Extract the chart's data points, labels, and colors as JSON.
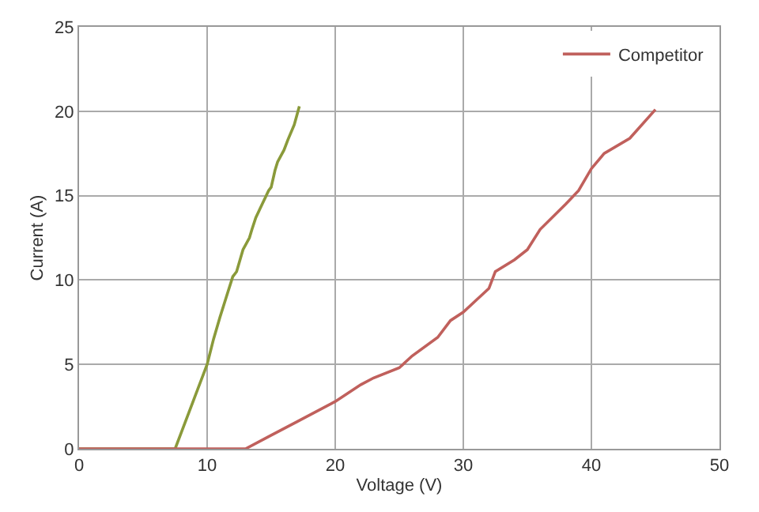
{
  "chart_data": {
    "type": "line",
    "xlabel": "Voltage (V)",
    "ylabel": "Current (A)",
    "xlim": [
      0,
      50
    ],
    "xticks": [
      0,
      10,
      20,
      30,
      40,
      50
    ],
    "ylim": [
      0,
      25
    ],
    "yticks": [
      0,
      5,
      10,
      15,
      20,
      25
    ],
    "grid": true,
    "legend": "top right",
    "marker": "none",
    "line_style": "solid",
    "series": [
      {
        "color": "#8a9a3a",
        "x": [
          0,
          7.5,
          8,
          9,
          10,
          10.5,
          11,
          11.5,
          12,
          12.3,
          12.8,
          13.3,
          13.5,
          13.8,
          14.3,
          14.8,
          15,
          15.3,
          15.5,
          16,
          16.3,
          16.8,
          17.2
        ],
        "values": [
          0,
          0,
          1,
          3,
          5,
          6.5,
          7.8,
          9,
          10.2,
          10.5,
          11.8,
          12.5,
          13,
          13.7,
          14.5,
          15.3,
          15.5,
          16.5,
          17,
          17.7,
          18.3,
          19.2,
          20.3
        ]
      },
      {
        "name": "Competitor",
        "color": "#c0605c",
        "x": [
          0,
          10,
          13,
          15,
          17,
          20,
          22,
          23,
          25,
          26,
          28,
          29,
          30,
          31,
          32,
          32.5,
          34,
          35,
          36,
          38,
          39,
          40,
          41,
          43,
          45
        ],
        "values": [
          0,
          0,
          0,
          0.8,
          1.6,
          2.8,
          3.8,
          4.2,
          4.8,
          5.5,
          6.6,
          7.6,
          8.1,
          8.8,
          9.5,
          10.5,
          11.2,
          11.8,
          13,
          14.5,
          15.3,
          16.6,
          17.5,
          18.4,
          20.1
        ]
      }
    ]
  }
}
